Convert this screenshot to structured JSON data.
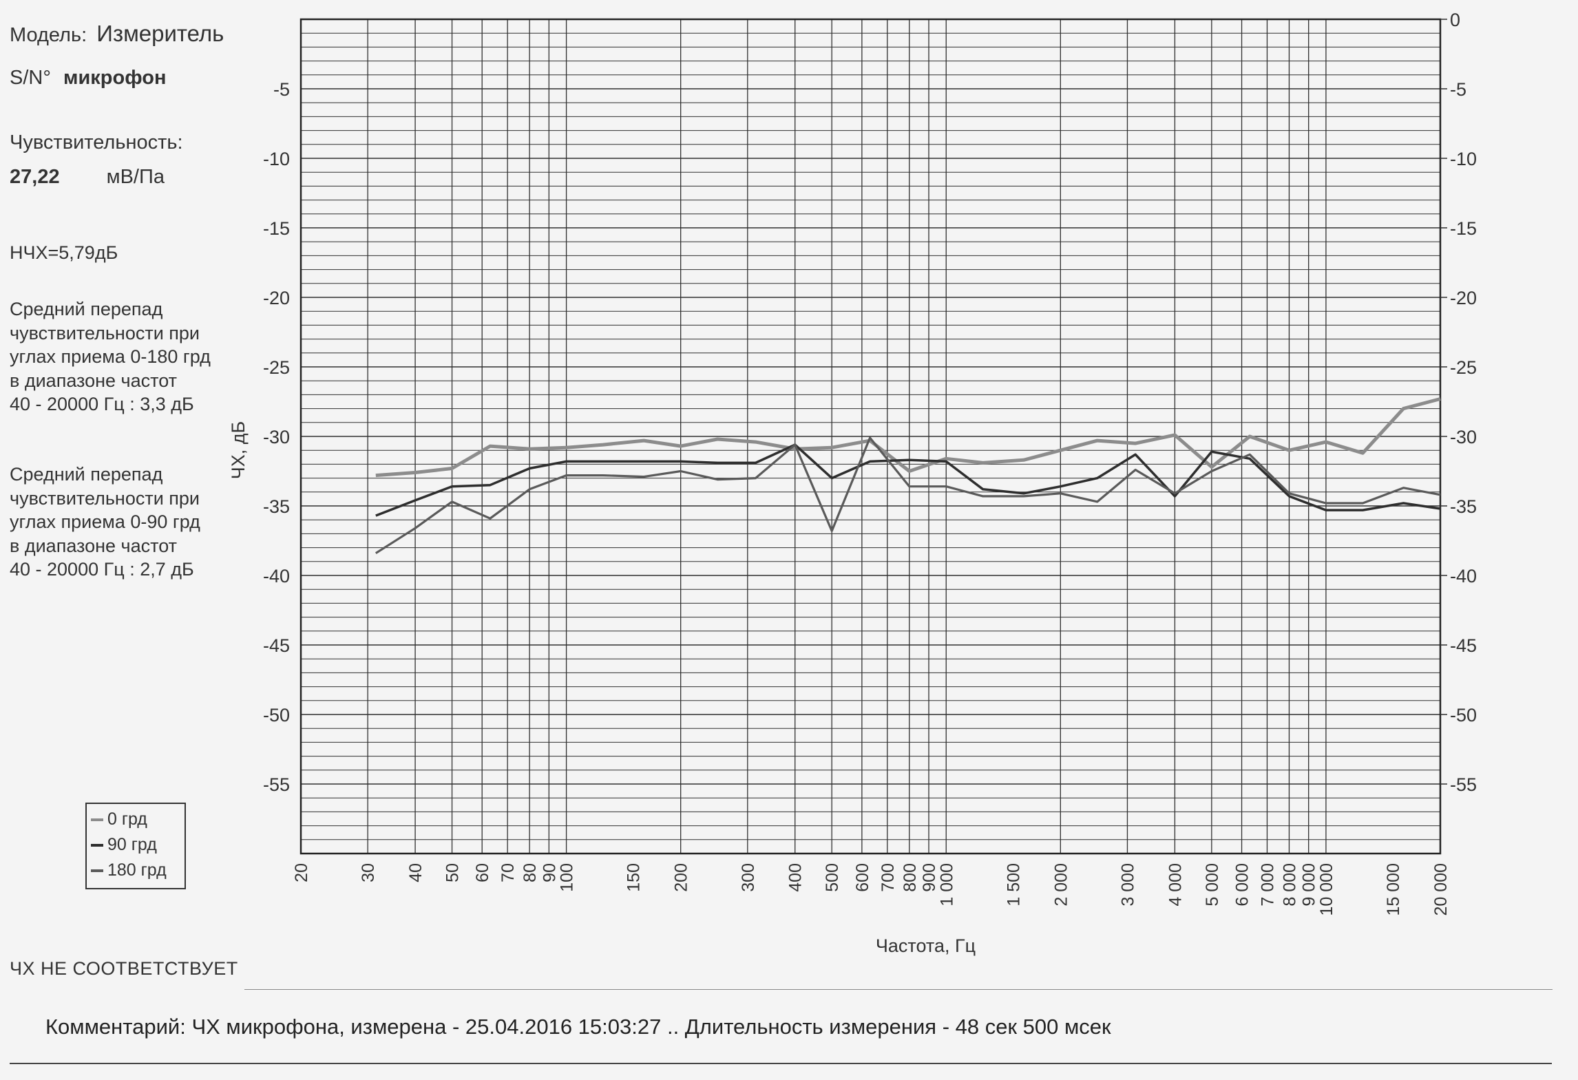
{
  "info": {
    "model_label": "Модель:",
    "model_value": "Измеритель",
    "sn_label": "S/N°",
    "sn_value": "микрофон",
    "sensitivity_label": "Чувствительность:",
    "sensitivity_value": "27,22",
    "sensitivity_unit": "мВ/Па",
    "nchx": "НЧХ=5,79дБ",
    "avg_180": [
      "Средний перепад",
      "чувствительности при",
      "углах приема 0-180 грд",
      "в диапазоне частот",
      "40 - 20000 Гц : 3,3 дБ"
    ],
    "avg_90": [
      "Средний перепад",
      "чувствительности при",
      "углах приема 0-90 грд",
      "в диапазоне частот",
      "40 - 20000 Гц : 2,7 дБ"
    ]
  },
  "status": "ЧХ НЕ СООТВЕТСТВУЕТ",
  "comment": "Комментарий: ЧХ микрофона, измерена - 25.04.2016 15:03:27 ..  Длительность измерения - 48 сек 500 мсек",
  "colors": {
    "series_0": "#8c8c8c",
    "series_90": "#2e2e2e",
    "series_180": "#5a5a5a",
    "grid": "#2f2f2f"
  },
  "chart_data": {
    "type": "line",
    "xlabel": "Частота, Гц",
    "ylabel": "ЧХ, дБ",
    "xscale": "log",
    "xlim": [
      20,
      20000
    ],
    "ylim": [
      -60,
      0
    ],
    "grid": true,
    "legend_position": "bottom-left",
    "x_ticks": [
      {
        "v": 20,
        "label": "20"
      },
      {
        "v": 30,
        "label": "30"
      },
      {
        "v": 40,
        "label": "40"
      },
      {
        "v": 50,
        "label": "50"
      },
      {
        "v": 60,
        "label": "60"
      },
      {
        "v": 70,
        "label": "70"
      },
      {
        "v": 80,
        "label": "80"
      },
      {
        "v": 90,
        "label": "90"
      },
      {
        "v": 100,
        "label": "100"
      },
      {
        "v": 150,
        "label": "150"
      },
      {
        "v": 200,
        "label": "200"
      },
      {
        "v": 300,
        "label": "300"
      },
      {
        "v": 400,
        "label": "400"
      },
      {
        "v": 500,
        "label": "500"
      },
      {
        "v": 600,
        "label": "600"
      },
      {
        "v": 700,
        "label": "700"
      },
      {
        "v": 800,
        "label": "800"
      },
      {
        "v": 900,
        "label": "900"
      },
      {
        "v": 1000,
        "label": "1 000"
      },
      {
        "v": 1500,
        "label": "1 500"
      },
      {
        "v": 2000,
        "label": "2 000"
      },
      {
        "v": 3000,
        "label": "3 000"
      },
      {
        "v": 4000,
        "label": "4 000"
      },
      {
        "v": 5000,
        "label": "5 000"
      },
      {
        "v": 6000,
        "label": "6 000"
      },
      {
        "v": 7000,
        "label": "7 000"
      },
      {
        "v": 8000,
        "label": "8 000"
      },
      {
        "v": 9000,
        "label": "9 000"
      },
      {
        "v": 10000,
        "label": "10 000"
      },
      {
        "v": 15000,
        "label": "15 000"
      },
      {
        "v": 20000,
        "label": "20 000"
      }
    ],
    "y_ticks_left": [
      {
        "v": -5,
        "label": "-5"
      },
      {
        "v": -10,
        "label": "-10"
      },
      {
        "v": -15,
        "label": "-15"
      },
      {
        "v": -20,
        "label": "-20"
      },
      {
        "v": -25,
        "label": "-25"
      },
      {
        "v": -30,
        "label": "-30"
      },
      {
        "v": -35,
        "label": "-35"
      },
      {
        "v": -40,
        "label": "-40"
      },
      {
        "v": -45,
        "label": "-45"
      },
      {
        "v": -50,
        "label": "-50"
      },
      {
        "v": -55,
        "label": "-55"
      }
    ],
    "y_ticks_right": [
      {
        "v": 0,
        "label": "0"
      },
      {
        "v": -5,
        "label": "-5"
      },
      {
        "v": -10,
        "label": "-10"
      },
      {
        "v": -15,
        "label": "-15"
      },
      {
        "v": -20,
        "label": "-20"
      },
      {
        "v": -25,
        "label": "-25"
      },
      {
        "v": -30,
        "label": "-30"
      },
      {
        "v": -35,
        "label": "-35"
      },
      {
        "v": -40,
        "label": "-40"
      },
      {
        "v": -45,
        "label": "-45"
      },
      {
        "v": -50,
        "label": "-50"
      },
      {
        "v": -55,
        "label": "-55"
      }
    ],
    "series": [
      {
        "name": "0 грд",
        "x": [
          31.5,
          40,
          50,
          63,
          80,
          100,
          125,
          160,
          200,
          250,
          315,
          400,
          500,
          630,
          800,
          1000,
          1250,
          1600,
          2000,
          2500,
          3150,
          4000,
          5000,
          6300,
          8000,
          10000,
          12500,
          16000,
          20000
        ],
        "y": [
          -32.8,
          -32.6,
          -32.3,
          -30.7,
          -30.9,
          -30.8,
          -30.6,
          -30.3,
          -30.7,
          -30.2,
          -30.4,
          -30.9,
          -30.8,
          -30.3,
          -32.5,
          -31.6,
          -31.9,
          -31.7,
          -31.0,
          -30.3,
          -30.5,
          -29.9,
          -32.2,
          -30.0,
          -31.0,
          -30.4,
          -31.2,
          -28.0,
          -27.3
        ]
      },
      {
        "name": "90 грд",
        "x": [
          31.5,
          40,
          50,
          63,
          80,
          100,
          125,
          160,
          200,
          250,
          315,
          400,
          500,
          630,
          800,
          1000,
          1250,
          1600,
          2000,
          2500,
          3150,
          4000,
          5000,
          6300,
          8000,
          10000,
          12500,
          16000,
          20000
        ],
        "y": [
          -35.7,
          -34.6,
          -33.6,
          -33.5,
          -32.3,
          -31.8,
          -31.8,
          -31.8,
          -31.8,
          -31.9,
          -31.9,
          -30.6,
          -33.0,
          -31.8,
          -31.7,
          -31.8,
          -33.8,
          -34.1,
          -33.6,
          -33.0,
          -31.3,
          -34.3,
          -31.1,
          -31.6,
          -34.3,
          -35.3,
          -35.3,
          -34.8,
          -35.2
        ]
      },
      {
        "name": "180 грд",
        "x": [
          31.5,
          40,
          50,
          63,
          80,
          100,
          125,
          160,
          200,
          250,
          315,
          400,
          500,
          630,
          800,
          1000,
          1250,
          1600,
          2000,
          2500,
          3150,
          4000,
          5000,
          6300,
          8000,
          10000,
          12500,
          16000,
          20000
        ],
        "y": [
          -38.4,
          -36.6,
          -34.7,
          -35.9,
          -33.8,
          -32.8,
          -32.8,
          -32.9,
          -32.5,
          -33.1,
          -33.0,
          -30.6,
          -36.8,
          -30.1,
          -33.6,
          -33.6,
          -34.3,
          -34.3,
          -34.1,
          -34.7,
          -32.4,
          -34.1,
          -32.5,
          -31.3,
          -34.1,
          -34.8,
          -34.8,
          -33.7,
          -34.2
        ]
      }
    ]
  }
}
